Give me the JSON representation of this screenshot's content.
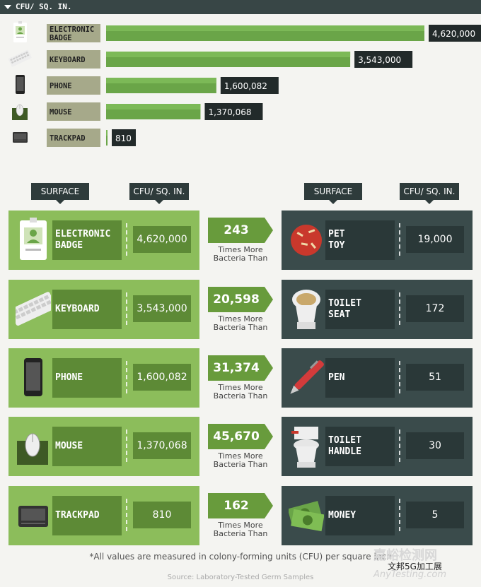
{
  "header": {
    "title": "CFU/ SQ. IN."
  },
  "chart_data": {
    "type": "bar",
    "orientation": "horizontal",
    "categories": [
      "ELECTRONIC BADGE",
      "KEYBOARD",
      "PHONE",
      "MOUSE",
      "TRACKPAD"
    ],
    "values": [
      4620000,
      3543000,
      1600082,
      1370068,
      810
    ],
    "value_labels": [
      "4,620,000",
      "3,543,000",
      "1,600,082",
      "1,370,068",
      "810"
    ],
    "bar_color": "#6aa548",
    "label_bg": "#a6a98a",
    "value_bg": "#222a2a"
  },
  "columns": {
    "left_surface": "SURFACE",
    "left_cfu": "CFU/ SQ. IN.",
    "right_surface": "SURFACE",
    "right_cfu": "CFU/ SQ. IN."
  },
  "comparisons": [
    {
      "left_name": "ELECTRONIC\nBADGE",
      "left_value": "4,620,000",
      "left_icon": "badge-icon",
      "multiple": "243",
      "caption": "Times More\nBacteria Than",
      "right_name": "PET\nTOY",
      "right_value": "19,000",
      "right_icon": "pet-toy-icon"
    },
    {
      "left_name": "KEYBOARD",
      "left_value": "3,543,000",
      "left_icon": "keyboard-icon",
      "multiple": "20,598",
      "caption": "Times More\nBacteria Than",
      "right_name": "TOILET\nSEAT",
      "right_value": "172",
      "right_icon": "toilet-seat-icon"
    },
    {
      "left_name": "PHONE",
      "left_value": "1,600,082",
      "left_icon": "phone-icon",
      "multiple": "31,374",
      "caption": "Times More\nBacteria Than",
      "right_name": "PEN",
      "right_value": "51",
      "right_icon": "pen-icon"
    },
    {
      "left_name": "MOUSE",
      "left_value": "1,370,068",
      "left_icon": "mouse-icon",
      "multiple": "45,670",
      "caption": "Times More\nBacteria Than",
      "right_name": "TOILET\nHANDLE",
      "right_value": "30",
      "right_icon": "toilet-handle-icon"
    },
    {
      "left_name": "TRACKPAD",
      "left_value": "810",
      "left_icon": "trackpad-icon",
      "multiple": "162",
      "caption": "Times More\nBacteria Than",
      "right_name": "MONEY",
      "right_value": "5",
      "right_icon": "money-icon"
    }
  ],
  "footnote": "*All values are measured in colony-forming units (CFU) per square inch",
  "source": "Source: Laboratory-Tested Germ Samples",
  "watermark": {
    "line1": "嘉峪检测网",
    "line2": "AnyTesting.com",
    "line3": "文邦5G加工展"
  }
}
